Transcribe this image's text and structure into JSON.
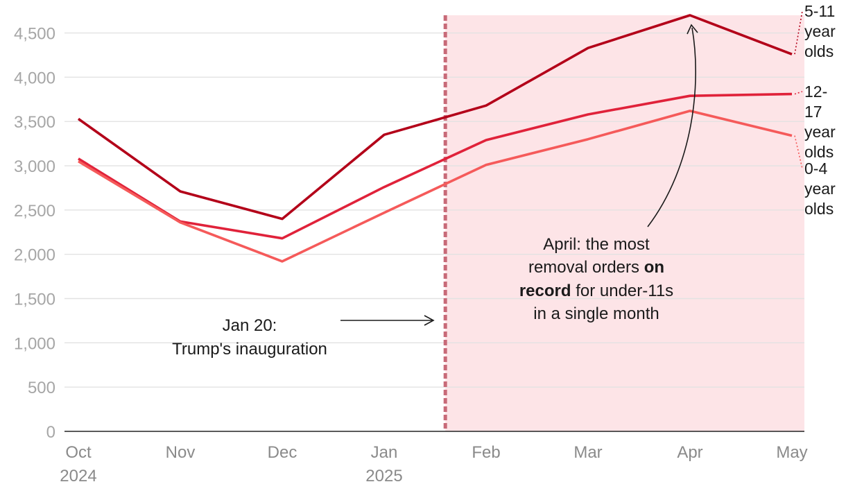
{
  "chart_data": {
    "type": "line",
    "title": "",
    "xlabel": "",
    "ylabel": "",
    "categories": [
      [
        "Oct",
        "2024"
      ],
      [
        "Nov"
      ],
      [
        "Dec"
      ],
      [
        "Jan",
        "2025"
      ],
      [
        "Feb"
      ],
      [
        "Mar"
      ],
      [
        "Apr"
      ],
      [
        "May"
      ]
    ],
    "ylim": [
      0,
      4700
    ],
    "yticks": [
      "0",
      "500",
      "1,000",
      "1,500",
      "2,000",
      "2,500",
      "3,000",
      "3,500",
      "4,000",
      "4,500"
    ],
    "grid": true,
    "series": [
      {
        "name": "5-11 year olds",
        "label_lines": [
          "5-11",
          "year",
          "olds"
        ],
        "color": "#b30019",
        "values": [
          3530,
          2710,
          2400,
          3350,
          3680,
          4330,
          4700,
          4260
        ]
      },
      {
        "name": "12-17 year olds",
        "label_lines": [
          "12-",
          "17",
          "year",
          "olds"
        ],
        "color": "#e0223a",
        "values": [
          3080,
          2370,
          2180,
          2760,
          3290,
          3580,
          3790,
          3810
        ]
      },
      {
        "name": "0-4 year olds",
        "label_lines": [
          "0-4",
          "year",
          "olds"
        ],
        "color": "#f55a5a",
        "values": [
          3050,
          2360,
          1920,
          2470,
          3010,
          3300,
          3620,
          3340
        ]
      }
    ],
    "shaded_region": {
      "from_index": 3.6,
      "to_index": 7,
      "color": "#fde4e7"
    },
    "marker_line": {
      "index": 3.6,
      "color": "#c86a78"
    },
    "annotations": {
      "inauguration": [
        "Jan 20:",
        "Trump's inauguration"
      ],
      "april": {
        "line1": "April: the most",
        "line2_plain": "removal orders ",
        "line2_bold": "on",
        "line3_bold": "record",
        "line3_plain": " for under-11s",
        "line4": "in a single month"
      }
    }
  }
}
